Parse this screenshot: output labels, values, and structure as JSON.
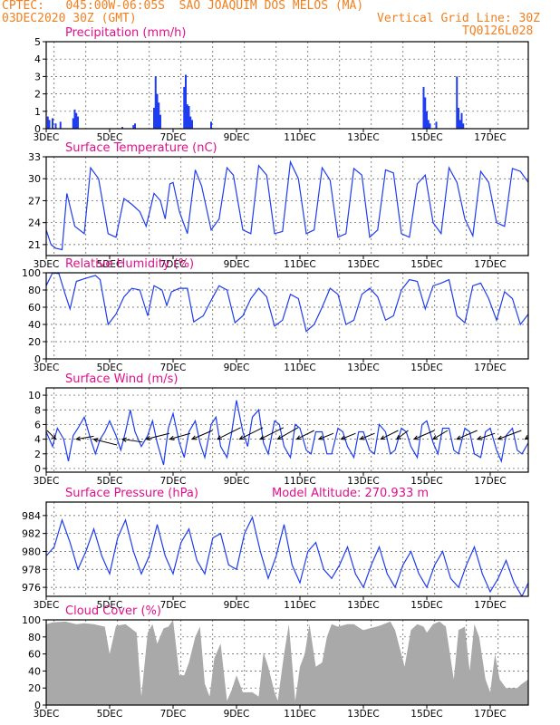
{
  "header": {
    "left_line1": "CPTEC:   045:00W-06:05S  SAO JOAQUIM DOS MELOS (MA)",
    "left_line2": "03DEC2020 30Z (GMT)",
    "right_line2": "Vertical Grid Line: 30Z",
    "right_line3": "TQ0126L028"
  },
  "colors": {
    "header": "#f08020",
    "title": "#e0108a",
    "line": "#1e3cf0",
    "bar": "#1e3cf0",
    "cloud": "#a9a9a9"
  },
  "chart_data": [
    {
      "type": "bar",
      "title": "Precipitation (mm/h)",
      "x_tick_labels": [
        "3DEC",
        "5DEC",
        "7DEC",
        "9DEC",
        "11DEC",
        "13DEC",
        "15DEC",
        "17DEC"
      ],
      "ylim": [
        0,
        5
      ],
      "yticks": [
        0,
        1,
        2,
        3,
        4,
        5
      ],
      "x_range_days": [
        3,
        18.2
      ],
      "grid": true,
      "x": [
        3.05,
        3.1,
        3.2,
        3.3,
        3.45,
        3.85,
        3.9,
        3.95,
        4.0,
        5.4,
        5.75,
        5.8,
        6.4,
        6.45,
        6.5,
        6.55,
        6.6,
        7.35,
        7.4,
        7.45,
        7.5,
        7.55,
        7.6,
        8.2,
        14.9,
        14.95,
        15.0,
        15.05,
        15.1,
        15.3,
        15.95,
        16.0,
        16.05,
        16.1,
        16.15
      ],
      "values": [
        0.7,
        0.5,
        0.6,
        0.3,
        0.4,
        0.6,
        1.1,
        0.9,
        0.7,
        0.1,
        0.2,
        0.3,
        1.2,
        3.0,
        2.0,
        1.5,
        0.8,
        2.4,
        3.1,
        1.4,
        1.3,
        0.7,
        0.5,
        0.4,
        2.4,
        1.8,
        1.0,
        0.5,
        0.3,
        0.4,
        3.0,
        1.2,
        0.5,
        0.9,
        0.3
      ]
    },
    {
      "type": "line",
      "title": "Surface Temperature (nC)",
      "x_tick_labels": [
        "3DEC",
        "5DEC",
        "7DEC",
        "9DEC",
        "11DEC",
        "13DEC",
        "15DEC",
        "17DEC"
      ],
      "ylim": [
        19.5,
        33
      ],
      "yticks": [
        21,
        24,
        27,
        30,
        33
      ],
      "grid": true,
      "x": [
        3.0,
        3.15,
        3.3,
        3.5,
        3.65,
        3.9,
        4.2,
        4.4,
        4.65,
        4.95,
        5.2,
        5.45,
        5.7,
        5.95,
        6.15,
        6.4,
        6.6,
        6.75,
        6.9,
        7.0,
        7.2,
        7.45,
        7.7,
        7.9,
        8.2,
        8.45,
        8.7,
        8.9,
        9.2,
        9.45,
        9.7,
        9.95,
        10.2,
        10.45,
        10.7,
        10.95,
        11.2,
        11.45,
        11.7,
        11.95,
        12.2,
        12.45,
        12.7,
        12.95,
        13.2,
        13.45,
        13.7,
        13.95,
        14.2,
        14.45,
        14.7,
        14.95,
        15.2,
        15.45,
        15.7,
        15.95,
        16.2,
        16.45,
        16.7,
        16.95,
        17.2,
        17.45,
        17.7,
        17.95,
        18.2
      ],
      "values": [
        23,
        21,
        20.5,
        20.3,
        28,
        23.5,
        22.5,
        31.5,
        30,
        22.5,
        22,
        27.3,
        26.5,
        25.5,
        23.5,
        28,
        27,
        24.5,
        29.3,
        29.5,
        25.5,
        22.5,
        31.2,
        29,
        23,
        24.5,
        31.5,
        30.5,
        23,
        22.5,
        31.8,
        30.5,
        22.5,
        22.8,
        32.3,
        30,
        22.5,
        23,
        31.5,
        29.8,
        22,
        22.5,
        31.4,
        30.5,
        22,
        23,
        31.2,
        30.8,
        22.5,
        22,
        29.3,
        30.5,
        24,
        22.5,
        31.5,
        29.5,
        24.5,
        22.2,
        31,
        29.5,
        24,
        23.5,
        31.4,
        31,
        29.5
      ]
    },
    {
      "type": "line",
      "title": "Relative Humidity (%)",
      "x_tick_labels": [
        "3DEC",
        "5DEC",
        "7DEC",
        "9DEC",
        "11DEC",
        "13DEC",
        "15DEC",
        "17DEC"
      ],
      "ylim": [
        0,
        100
      ],
      "yticks": [
        0,
        20,
        40,
        60,
        80,
        100
      ],
      "grid": true,
      "x": [
        3.0,
        3.2,
        3.4,
        3.6,
        3.75,
        3.95,
        4.2,
        4.55,
        4.7,
        4.95,
        5.2,
        5.45,
        5.7,
        5.95,
        6.2,
        6.4,
        6.65,
        6.8,
        6.95,
        7.2,
        7.45,
        7.65,
        7.95,
        8.2,
        8.45,
        8.7,
        8.95,
        9.2,
        9.45,
        9.7,
        9.95,
        10.2,
        10.45,
        10.7,
        10.95,
        11.2,
        11.45,
        11.7,
        11.95,
        12.2,
        12.45,
        12.7,
        12.95,
        13.2,
        13.45,
        13.7,
        13.95,
        14.2,
        14.45,
        14.7,
        14.95,
        15.2,
        15.45,
        15.7,
        15.95,
        16.2,
        16.45,
        16.7,
        16.95,
        17.2,
        17.45,
        17.7,
        17.95,
        18.2
      ],
      "values": [
        85,
        100,
        99,
        75,
        58,
        90,
        93,
        97,
        92,
        40,
        52,
        72,
        82,
        80,
        50,
        85,
        80,
        62,
        78,
        82,
        82,
        43,
        50,
        68,
        85,
        80,
        42,
        50,
        70,
        82,
        72,
        38,
        45,
        75,
        70,
        32,
        40,
        60,
        82,
        75,
        40,
        45,
        75,
        82,
        72,
        45,
        50,
        80,
        92,
        90,
        58,
        85,
        88,
        92,
        50,
        42,
        85,
        88,
        70,
        45,
        78,
        70,
        40,
        52
      ]
    },
    {
      "type": "line",
      "title": "Surface Wind (m/s)",
      "x_tick_labels": [
        "3DEC",
        "5DEC",
        "7DEC",
        "9DEC",
        "11DEC",
        "13DEC",
        "15DEC",
        "17DEC"
      ],
      "ylim": [
        -0.5,
        11
      ],
      "yticks": [
        0,
        2,
        4,
        6,
        8,
        10
      ],
      "grid": true,
      "x": [
        3.0,
        3.2,
        3.35,
        3.55,
        3.7,
        3.85,
        4.0,
        4.2,
        4.4,
        4.55,
        4.7,
        4.85,
        5.0,
        5.2,
        5.35,
        5.5,
        5.65,
        5.8,
        6.0,
        6.2,
        6.35,
        6.5,
        6.7,
        6.85,
        7.0,
        7.2,
        7.35,
        7.5,
        7.7,
        7.85,
        8.0,
        8.2,
        8.35,
        8.5,
        8.7,
        8.85,
        9.0,
        9.2,
        9.35,
        9.5,
        9.7,
        9.85,
        10.0,
        10.2,
        10.35,
        10.5,
        10.7,
        10.85,
        11.0,
        11.2,
        11.35,
        11.5,
        11.7,
        11.85,
        12.0,
        12.2,
        12.35,
        12.5,
        12.7,
        12.85,
        13.0,
        13.2,
        13.35,
        13.5,
        13.7,
        13.85,
        14.0,
        14.2,
        14.35,
        14.5,
        14.7,
        14.85,
        15.0,
        15.2,
        15.35,
        15.5,
        15.7,
        15.85,
        16.0,
        16.2,
        16.35,
        16.5,
        16.7,
        16.85,
        17.0,
        17.2,
        17.35,
        17.5,
        17.7,
        17.85,
        18.0,
        18.2
      ],
      "values": [
        5,
        3,
        5.5,
        4,
        1,
        4.5,
        5.5,
        7,
        4,
        2,
        4,
        5,
        6.5,
        4.5,
        2.5,
        5,
        8,
        5,
        3,
        4.5,
        6.5,
        3.5,
        0.5,
        5.5,
        7.5,
        3.5,
        1.5,
        5,
        6.5,
        3.5,
        1.5,
        6,
        7,
        3,
        1.5,
        5,
        9.3,
        5,
        3,
        7,
        8,
        3.5,
        2,
        6.5,
        6,
        3,
        1.5,
        6,
        5.5,
        2.5,
        2,
        5,
        5,
        2,
        2,
        5.5,
        5,
        3,
        1.5,
        5,
        5,
        2.5,
        2,
        6,
        5,
        2,
        2.5,
        5.5,
        5,
        3,
        1.5,
        6,
        6.5,
        3.5,
        2,
        5.5,
        5.5,
        2.5,
        2,
        5.5,
        5,
        2,
        1.5,
        5,
        5.5,
        2.5,
        1,
        4.5,
        5.5,
        2.5,
        2,
        3.5
      ],
      "wind_vectors_x": [
        3.3,
        3.95,
        4.5,
        5.4,
        6.15,
        6.9,
        7.6,
        8.4,
        9.1,
        9.75,
        10.3,
        10.9,
        11.6,
        12.3,
        12.9,
        13.55,
        14.05,
        14.6,
        15.2,
        15.95,
        16.6,
        17.25,
        18.1
      ],
      "wind_vectors_u": [
        3,
        -6,
        -8,
        -7,
        -8,
        -7,
        -7,
        -8,
        -8,
        -8,
        -7,
        -6,
        -5,
        -5,
        -5,
        -6,
        -4,
        -7,
        -5,
        -7,
        -6,
        -8,
        -3
      ],
      "wind_vectors_v": [
        -3,
        -1,
        2,
        1,
        -2,
        -2,
        -3,
        -4,
        -4,
        -4,
        -4,
        -3,
        -2,
        -2,
        -2,
        -3,
        -3,
        -3,
        -3,
        -3,
        -2,
        -3,
        -2
      ]
    },
    {
      "type": "line",
      "title": "Surface Pressure (hPa)",
      "annotation": "Model Altitude: 270.933 m",
      "x_tick_labels": [
        "3DEC",
        "5DEC",
        "7DEC",
        "9DEC",
        "11DEC",
        "13DEC",
        "15DEC",
        "17DEC"
      ],
      "ylim": [
        975,
        985.5
      ],
      "yticks": [
        976,
        978,
        980,
        982,
        984
      ],
      "grid": true,
      "x": [
        3.0,
        3.25,
        3.5,
        3.75,
        4.0,
        4.25,
        4.5,
        4.75,
        5.0,
        5.25,
        5.5,
        5.75,
        6.0,
        6.25,
        6.5,
        6.75,
        7.0,
        7.25,
        7.5,
        7.75,
        8.0,
        8.25,
        8.5,
        8.75,
        9.0,
        9.25,
        9.5,
        9.75,
        10.0,
        10.25,
        10.5,
        10.75,
        11.0,
        11.25,
        11.5,
        11.75,
        12.0,
        12.25,
        12.5,
        12.75,
        13.0,
        13.25,
        13.5,
        13.75,
        14.0,
        14.25,
        14.5,
        14.75,
        15.0,
        15.25,
        15.5,
        15.75,
        16.0,
        16.25,
        16.5,
        16.75,
        17.0,
        17.25,
        17.5,
        17.75,
        18.0,
        18.2
      ],
      "values": [
        979.5,
        980.5,
        983.5,
        981,
        978,
        980,
        982.5,
        979.5,
        977.5,
        981.5,
        983.5,
        980,
        977.5,
        979.5,
        983,
        979.5,
        977.5,
        981,
        982.5,
        979,
        977.5,
        981.5,
        982,
        978.5,
        978,
        982,
        983.8,
        980,
        977,
        979.5,
        983,
        978.5,
        976.5,
        980,
        981,
        978,
        977,
        978.5,
        980.5,
        977.5,
        976,
        978.5,
        980.5,
        977.5,
        976,
        978.5,
        980,
        977.5,
        976,
        978.5,
        980,
        977,
        976,
        978.5,
        980.5,
        977.5,
        975.5,
        977,
        979,
        976.5,
        975,
        976.5
      ]
    },
    {
      "type": "area",
      "title": "Cloud Cover (%)",
      "x_tick_labels": [
        "3DEC",
        "5DEC",
        "7DEC",
        "9DEC",
        "11DEC",
        "13DEC",
        "15DEC",
        "17DEC"
      ],
      "ylim": [
        0,
        100
      ],
      "yticks": [
        0,
        20,
        40,
        60,
        80,
        100
      ],
      "grid": true,
      "x": [
        3.0,
        3.2,
        3.6,
        3.95,
        4.2,
        4.5,
        4.85,
        5.0,
        5.2,
        5.5,
        5.85,
        6.0,
        6.2,
        6.35,
        6.5,
        6.7,
        6.85,
        7.0,
        7.2,
        7.35,
        7.5,
        7.7,
        7.85,
        8.0,
        8.15,
        8.3,
        8.5,
        8.7,
        8.85,
        9.0,
        9.2,
        9.5,
        9.7,
        9.85,
        10.0,
        10.2,
        10.3,
        10.5,
        10.65,
        10.85,
        11.0,
        11.15,
        11.3,
        11.5,
        11.7,
        11.85,
        12.0,
        12.2,
        12.5,
        12.7,
        12.9,
        13.0,
        13.2,
        13.5,
        13.85,
        14.0,
        14.3,
        14.5,
        14.7,
        14.9,
        15.0,
        15.2,
        15.4,
        15.6,
        15.85,
        16.0,
        16.2,
        16.35,
        16.5,
        16.65,
        16.85,
        17.0,
        17.15,
        17.3,
        17.5,
        17.7,
        17.85,
        18.0,
        18.2
      ],
      "values": [
        95,
        97,
        98,
        95,
        96,
        95,
        92,
        60,
        93,
        95,
        85,
        10,
        85,
        95,
        72,
        90,
        92,
        100,
        35,
        35,
        50,
        80,
        92,
        25,
        10,
        55,
        72,
        5,
        18,
        35,
        15,
        15,
        10,
        62,
        45,
        15,
        5,
        60,
        95,
        5,
        45,
        60,
        95,
        45,
        50,
        80,
        95,
        92,
        95,
        95,
        90,
        88,
        90,
        93,
        98,
        88,
        45,
        88,
        95,
        92,
        85,
        95,
        98,
        92,
        30,
        88,
        92,
        40,
        95,
        80,
        30,
        15,
        60,
        30,
        20,
        20,
        20,
        25,
        30
      ]
    }
  ]
}
